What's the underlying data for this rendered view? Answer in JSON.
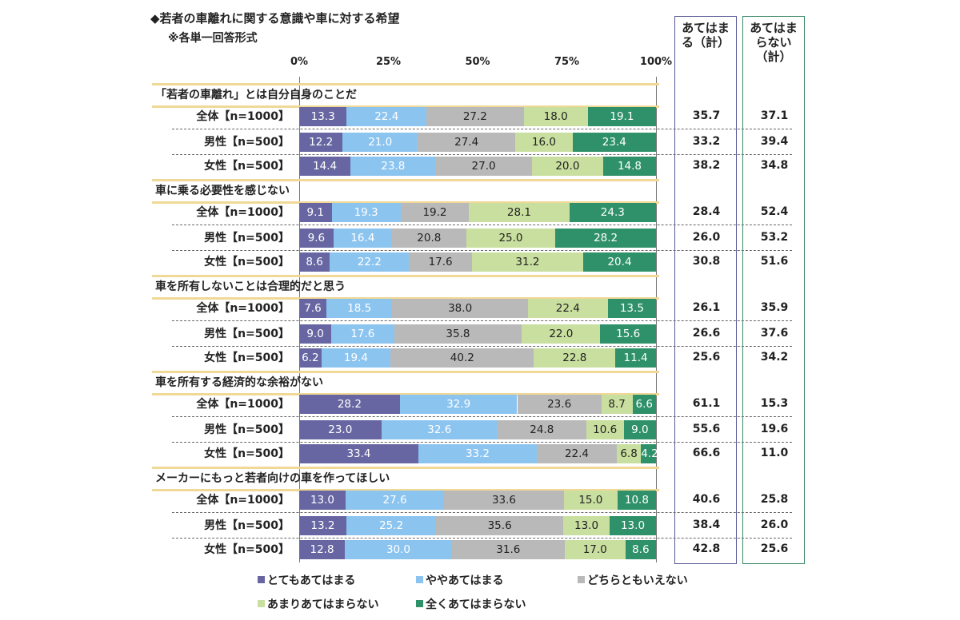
{
  "title": "◆若者の車離れに関する意識や車に対する希望",
  "subtitle": "※各単一回答形式",
  "summary_headers": [
    "あてはまる（計）",
    "あてはまらない（計）"
  ],
  "chart_data": {
    "type": "bar",
    "orientation": "horizontal",
    "stacked": true,
    "percent": true,
    "title": "◆若者の車離れに関する意識や車に対する希望",
    "subtitle": "※各単一回答形式",
    "xlim": [
      0,
      100
    ],
    "x_tick_labels": [
      "0%",
      "25%",
      "50%",
      "75%",
      "100%"
    ],
    "legend_position": "bottom",
    "series": [
      {
        "name": "とてもあてはまる",
        "color": "#6766a2"
      },
      {
        "name": "ややあてはまる",
        "color": "#8cc4f0"
      },
      {
        "name": "どちらともいえない",
        "color": "#b9b9b9"
      },
      {
        "name": "あまりあてはまらない",
        "color": "#c9df9f"
      },
      {
        "name": "全くあてはまらない",
        "color": "#2f9169"
      }
    ],
    "groups": [
      {
        "title": "「若者の車離れ」とは自分自身のことだ",
        "rows": [
          {
            "label": "全体【n=1000】",
            "values": [
              13.3,
              22.4,
              27.2,
              18.0,
              19.1
            ],
            "apply": "35.7",
            "not_apply": "37.1"
          },
          {
            "label": "男性【n=500】",
            "values": [
              12.2,
              21.0,
              27.4,
              16.0,
              23.4
            ],
            "apply": "33.2",
            "not_apply": "39.4"
          },
          {
            "label": "女性【n=500】",
            "values": [
              14.4,
              23.8,
              27.0,
              20.0,
              14.8
            ],
            "apply": "38.2",
            "not_apply": "34.8"
          }
        ]
      },
      {
        "title": "車に乗る必要性を感じない",
        "rows": [
          {
            "label": "全体【n=1000】",
            "values": [
              9.1,
              19.3,
              19.2,
              28.1,
              24.3
            ],
            "apply": "28.4",
            "not_apply": "52.4"
          },
          {
            "label": "男性【n=500】",
            "values": [
              9.6,
              16.4,
              20.8,
              25.0,
              28.2
            ],
            "apply": "26.0",
            "not_apply": "53.2"
          },
          {
            "label": "女性【n=500】",
            "values": [
              8.6,
              22.2,
              17.6,
              31.2,
              20.4
            ],
            "apply": "30.8",
            "not_apply": "51.6"
          }
        ]
      },
      {
        "title": "車を所有しないことは合理的だと思う",
        "rows": [
          {
            "label": "全体【n=1000】",
            "values": [
              7.6,
              18.5,
              38.0,
              22.4,
              13.5
            ],
            "apply": "26.1",
            "not_apply": "35.9"
          },
          {
            "label": "男性【n=500】",
            "values": [
              9.0,
              17.6,
              35.8,
              22.0,
              15.6
            ],
            "apply": "26.6",
            "not_apply": "37.6"
          },
          {
            "label": "女性【n=500】",
            "values": [
              6.2,
              19.4,
              40.2,
              22.8,
              11.4
            ],
            "apply": "25.6",
            "not_apply": "34.2"
          }
        ]
      },
      {
        "title": "車を所有する経済的な余裕がない",
        "rows": [
          {
            "label": "全体【n=1000】",
            "values": [
              28.2,
              32.9,
              23.6,
              8.7,
              6.6
            ],
            "apply": "61.1",
            "not_apply": "15.3"
          },
          {
            "label": "男性【n=500】",
            "values": [
              23.0,
              32.6,
              24.8,
              10.6,
              9.0
            ],
            "apply": "55.6",
            "not_apply": "19.6"
          },
          {
            "label": "女性【n=500】",
            "values": [
              33.4,
              33.2,
              22.4,
              6.8,
              4.2
            ],
            "apply": "66.6",
            "not_apply": "11.0"
          }
        ]
      },
      {
        "title": "メーカーにもっと若者向けの車を作ってほしい",
        "rows": [
          {
            "label": "全体【n=1000】",
            "values": [
              13.0,
              27.6,
              33.6,
              15.0,
              10.8
            ],
            "apply": "40.6",
            "not_apply": "25.8"
          },
          {
            "label": "男性【n=500】",
            "values": [
              13.2,
              25.2,
              35.6,
              13.0,
              13.0
            ],
            "apply": "38.4",
            "not_apply": "26.0"
          },
          {
            "label": "女性【n=500】",
            "values": [
              12.8,
              30.0,
              31.6,
              17.0,
              8.6
            ],
            "apply": "42.8",
            "not_apply": "25.6"
          }
        ]
      }
    ]
  }
}
